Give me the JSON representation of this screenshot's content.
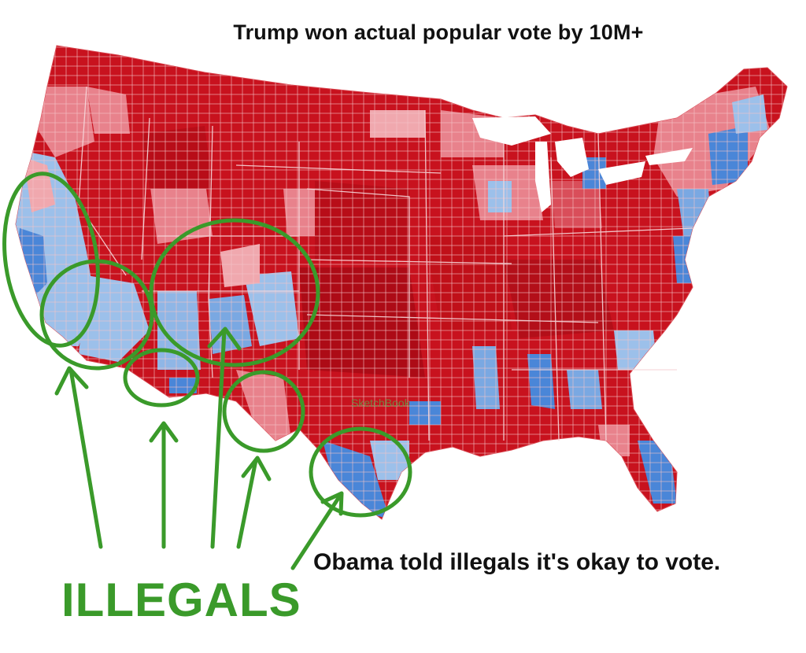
{
  "header": {
    "title": "Trump won actual popular vote by 10M+"
  },
  "annotations": {
    "caption": "Obama told illegals it's okay to vote.",
    "label": "ILLEGALS",
    "watermark": "SketchBook"
  },
  "colors": {
    "republican": "#c8121e",
    "republican_light": "#e8828c",
    "democrat": "#4a86d8",
    "democrat_light": "#9cc0ea",
    "annotation_green": "#3a9a2a"
  },
  "map": {
    "subject": "US county-level election results"
  }
}
